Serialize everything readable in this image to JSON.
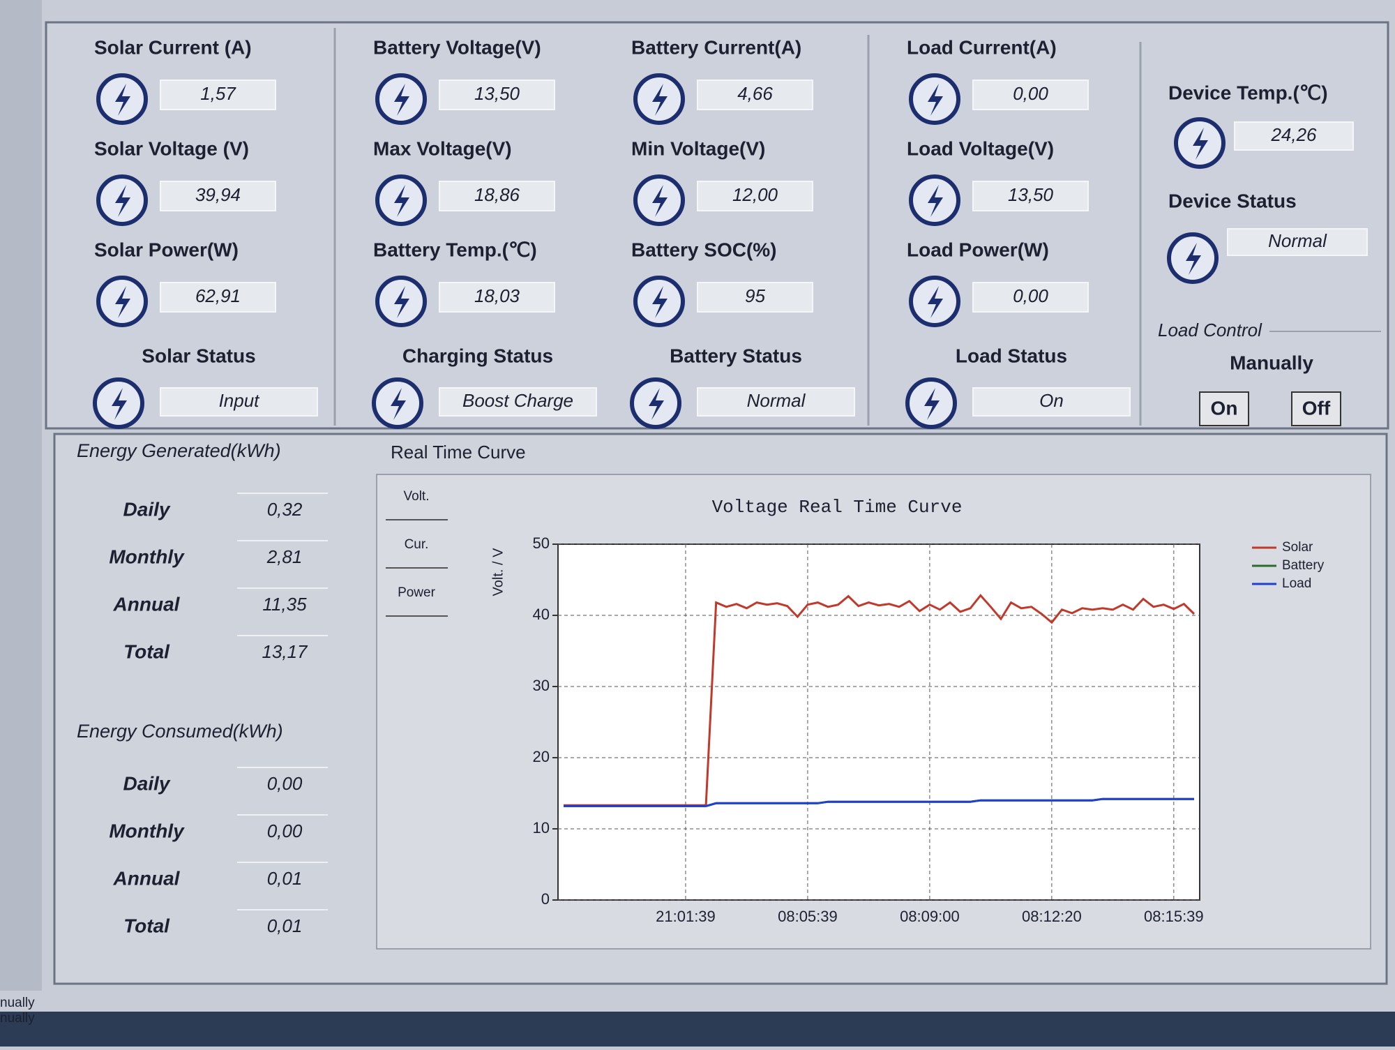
{
  "groups": [
    {
      "items": [
        {
          "label": "Solar Current (A)",
          "value": "1,57"
        },
        {
          "label": "Solar Voltage (V)",
          "value": "39,94"
        },
        {
          "label": "Solar Power(W)",
          "value": "62,91"
        }
      ],
      "status_label": "Solar Status",
      "status": "Input"
    },
    {
      "items": [
        {
          "label": "Battery Voltage(V)",
          "value": "13,50"
        },
        {
          "label": "Max Voltage(V)",
          "value": "18,86"
        },
        {
          "label": "Battery Temp.(℃)",
          "value": "18,03"
        }
      ],
      "status_label": "Charging Status",
      "status": "Boost Charge"
    },
    {
      "items": [
        {
          "label": "Battery Current(A)",
          "value": "4,66"
        },
        {
          "label": "Min Voltage(V)",
          "value": "12,00"
        },
        {
          "label": "Battery SOC(%)",
          "value": "95"
        }
      ],
      "status_label": "Battery Status",
      "status": "Normal"
    },
    {
      "items": [
        {
          "label": "Load Current(A)",
          "value": "0,00"
        },
        {
          "label": "Load Voltage(V)",
          "value": "13,50"
        },
        {
          "label": "Load Power(W)",
          "value": "0,00"
        }
      ],
      "status_label": "Load Status",
      "status": "On"
    }
  ],
  "device": {
    "temp_label": "Device Temp.(℃)",
    "temp": "24,26",
    "status_label": "Device Status",
    "status": "Normal",
    "control_title": "Load Control",
    "mode": "Manually",
    "buttons": [
      "On",
      "Off"
    ]
  },
  "energy_generated": {
    "title": "Energy Generated(kWh)",
    "rows": [
      [
        "Daily",
        "0,32"
      ],
      [
        "Monthly",
        "2,81"
      ],
      [
        "Annual",
        "11,35"
      ],
      [
        "Total",
        "13,17"
      ]
    ]
  },
  "energy_consumed": {
    "title": "Energy Consumed(kWh)",
    "rows": [
      [
        "Daily",
        "0,00"
      ],
      [
        "Monthly",
        "0,00"
      ],
      [
        "Annual",
        "0,01"
      ],
      [
        "Total",
        "0,01"
      ]
    ]
  },
  "curve": {
    "title": "Real Time Curve",
    "tabs": [
      "Volt.",
      "Cur.",
      "Power"
    ]
  },
  "footer_lines": [
    "nually",
    "nually"
  ],
  "chart_data": {
    "type": "line",
    "title": "Voltage Real Time Curve",
    "y_label": "Volt. / V",
    "ylim": [
      0,
      50
    ],
    "yticks": [
      0,
      10,
      20,
      30,
      40,
      50
    ],
    "grid": true,
    "legend": "right",
    "categories": [
      null,
      null,
      null,
      null,
      null,
      null,
      null,
      null,
      null,
      null,
      null,
      null,
      "21:01:39",
      null,
      null,
      null,
      null,
      null,
      null,
      null,
      null,
      null,
      null,
      null,
      "08:05:39",
      null,
      null,
      null,
      null,
      null,
      null,
      null,
      null,
      null,
      null,
      null,
      "08:09:00",
      null,
      null,
      null,
      null,
      null,
      null,
      null,
      null,
      null,
      null,
      null,
      "08:12:20",
      null,
      null,
      null,
      null,
      null,
      null,
      null,
      null,
      null,
      null,
      null,
      "08:15:39",
      null,
      null
    ],
    "series": [
      {
        "name": "Solar",
        "color": "#c0392b",
        "values": [
          13.3,
          13.3,
          13.3,
          13.3,
          13.3,
          13.3,
          13.3,
          13.3,
          13.3,
          13.3,
          13.3,
          13.3,
          13.3,
          13.3,
          13.3,
          41.8,
          41.2,
          41.6,
          41.0,
          41.8,
          41.5,
          41.7,
          41.3,
          39.8,
          41.5,
          41.8,
          41.2,
          41.5,
          42.7,
          41.3,
          41.8,
          41.4,
          41.6,
          41.2,
          42.0,
          40.6,
          41.5,
          40.8,
          41.8,
          40.5,
          41.0,
          42.8,
          41.2,
          39.5,
          41.8,
          41.0,
          41.2,
          40.2,
          39.0,
          40.8,
          40.3,
          41.0,
          40.8,
          41.0,
          40.8,
          41.5,
          40.8,
          42.3,
          41.2,
          41.5,
          40.9,
          41.6,
          40.2
        ]
      },
      {
        "name": "Battery",
        "color": "#2e6b2e",
        "values": [
          13.2,
          13.2,
          13.2,
          13.2,
          13.2,
          13.2,
          13.2,
          13.2,
          13.2,
          13.2,
          13.2,
          13.2,
          13.2,
          13.2,
          13.2,
          13.6,
          13.6,
          13.6,
          13.6,
          13.6,
          13.6,
          13.6,
          13.6,
          13.6,
          13.6,
          13.6,
          13.8,
          13.8,
          13.8,
          13.8,
          13.8,
          13.8,
          13.8,
          13.8,
          13.8,
          13.8,
          13.8,
          13.8,
          13.8,
          13.8,
          13.8,
          14.0,
          14.0,
          14.0,
          14.0,
          14.0,
          14.0,
          14.0,
          14.0,
          14.0,
          14.0,
          14.0,
          14.0,
          14.2,
          14.2,
          14.2,
          14.2,
          14.2,
          14.2,
          14.2,
          14.2,
          14.2,
          14.2
        ]
      },
      {
        "name": "Load",
        "color": "#1f3fd0",
        "values": [
          13.2,
          13.2,
          13.2,
          13.2,
          13.2,
          13.2,
          13.2,
          13.2,
          13.2,
          13.2,
          13.2,
          13.2,
          13.2,
          13.2,
          13.2,
          13.6,
          13.6,
          13.6,
          13.6,
          13.6,
          13.6,
          13.6,
          13.6,
          13.6,
          13.6,
          13.6,
          13.8,
          13.8,
          13.8,
          13.8,
          13.8,
          13.8,
          13.8,
          13.8,
          13.8,
          13.8,
          13.8,
          13.8,
          13.8,
          13.8,
          13.8,
          14.0,
          14.0,
          14.0,
          14.0,
          14.0,
          14.0,
          14.0,
          14.0,
          14.0,
          14.0,
          14.0,
          14.0,
          14.2,
          14.2,
          14.2,
          14.2,
          14.2,
          14.2,
          14.2,
          14.2,
          14.2,
          14.2
        ]
      }
    ]
  }
}
